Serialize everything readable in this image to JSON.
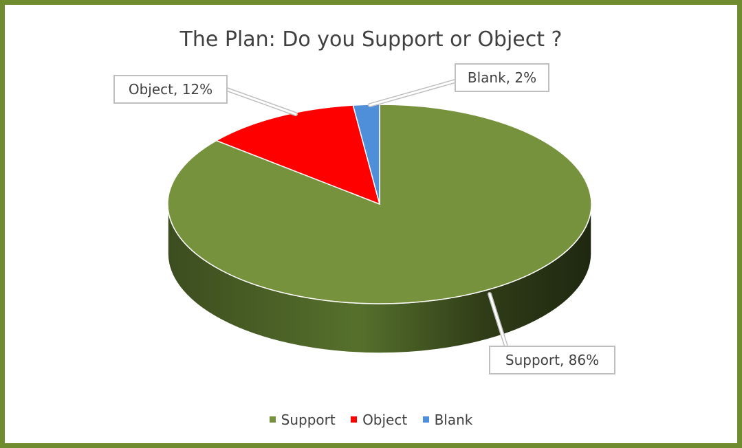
{
  "chart_data": {
    "type": "pie",
    "title": "The Plan: Do you Support or Object ?",
    "categories": [
      "Support",
      "Object",
      "Blank"
    ],
    "values": [
      86,
      12,
      2
    ],
    "unit": "%",
    "colors": [
      "#77923c",
      "#ff0000",
      "#4f8ed8"
    ],
    "data_labels": [
      "Support, 86%",
      "Object, 12%",
      "Blank, 2%"
    ],
    "legend_position": "bottom",
    "style": "3d"
  },
  "theme": {
    "border": "#6f8c2e"
  }
}
